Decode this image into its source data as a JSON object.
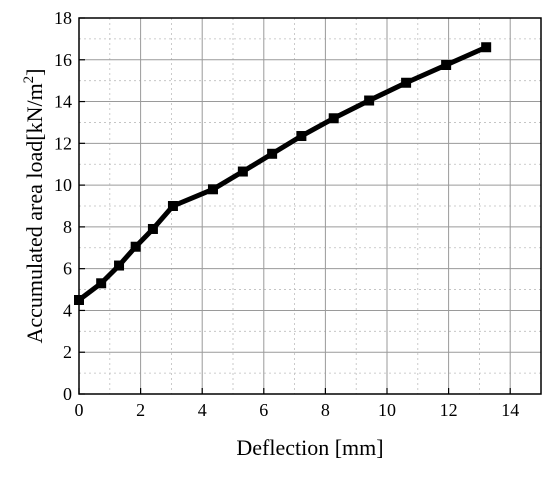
{
  "chart_data": {
    "type": "line",
    "xlabel": "Deflection [mm]",
    "ylabel_main": "Accumulated area load[kN/m",
    "ylabel_sup": "2",
    "ylabel_close": "]",
    "xlim": [
      0,
      15
    ],
    "ylim": [
      0,
      18
    ],
    "x_ticks": [
      0,
      2,
      4,
      6,
      8,
      10,
      12,
      14
    ],
    "y_ticks": [
      0,
      2,
      4,
      6,
      8,
      10,
      12,
      14,
      16,
      18
    ],
    "x_minor_step": 1,
    "y_minor_step": 1,
    "grid": true,
    "marker": "square",
    "line_color": "#000000",
    "x": [
      0.0,
      0.72,
      1.3,
      1.84,
      2.4,
      3.05,
      4.35,
      5.32,
      6.27,
      7.22,
      8.27,
      9.42,
      10.62,
      11.92,
      13.22
    ],
    "y": [
      4.5,
      5.3,
      6.15,
      7.05,
      7.9,
      9.0,
      9.8,
      10.65,
      11.5,
      12.35,
      13.2,
      14.05,
      14.9,
      15.75,
      16.6
    ]
  }
}
